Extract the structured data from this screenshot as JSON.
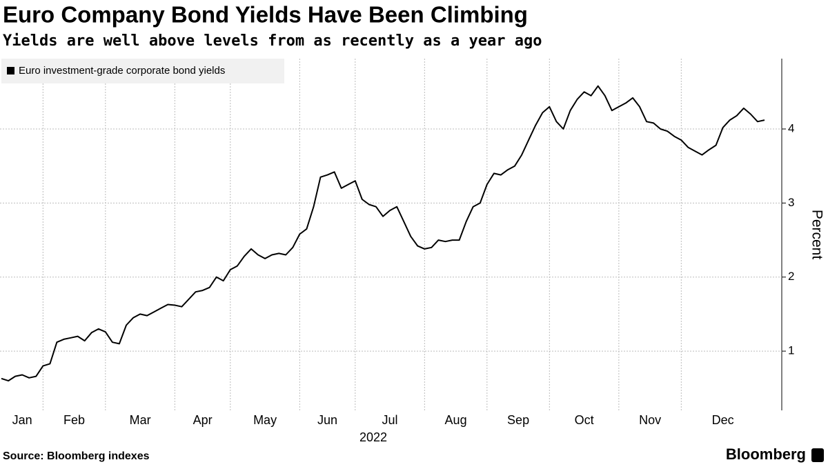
{
  "chart_data": {
    "type": "line",
    "title": "Euro Company Bond Yields Have Been Climbing",
    "subtitle": "Yields are well above levels from as recently as a year ago",
    "source": "Source: Bloomberg indexes",
    "brand": "Bloomberg",
    "x_label": "2022",
    "y_label": "Percent",
    "legend": "top-left",
    "grid": true,
    "ylim": [
      0.2,
      4.95
    ],
    "yticks": [
      1,
      2,
      3,
      4
    ],
    "categories": [
      "Jan",
      null,
      null,
      null,
      null,
      null,
      "Feb",
      null,
      null,
      null,
      null,
      null,
      null,
      null,
      null,
      "Mar",
      null,
      null,
      null,
      null,
      null,
      null,
      null,
      null,
      null,
      "Apr",
      null,
      null,
      null,
      null,
      null,
      null,
      null,
      "May",
      null,
      null,
      null,
      null,
      null,
      null,
      null,
      null,
      null,
      "Jun",
      null,
      null,
      null,
      null,
      null,
      null,
      null,
      "Jul",
      null,
      null,
      null,
      null,
      null,
      null,
      null,
      null,
      null,
      "Aug",
      null,
      null,
      null,
      null,
      null,
      null,
      null,
      null,
      "Sep",
      null,
      null,
      null,
      null,
      null,
      null,
      null,
      null,
      "Oct",
      null,
      null,
      null,
      null,
      null,
      null,
      null,
      null,
      null,
      "Nov",
      null,
      null,
      null,
      null,
      null,
      null,
      null,
      null,
      "Dec",
      null,
      null,
      null,
      null,
      null,
      null,
      null,
      null,
      null,
      null,
      null,
      null
    ],
    "series": [
      {
        "name": "Euro investment-grade corporate bond yields",
        "color": "#000000",
        "values": [
          0.63,
          0.6,
          0.66,
          0.68,
          0.64,
          0.66,
          0.8,
          0.83,
          1.12,
          1.16,
          1.18,
          1.2,
          1.14,
          1.25,
          1.3,
          1.26,
          1.12,
          1.1,
          1.35,
          1.45,
          1.5,
          1.48,
          1.53,
          1.58,
          1.63,
          1.62,
          1.6,
          1.7,
          1.8,
          1.82,
          1.86,
          2.0,
          1.95,
          2.1,
          2.15,
          2.28,
          2.38,
          2.3,
          2.25,
          2.3,
          2.32,
          2.3,
          2.4,
          2.58,
          2.65,
          2.95,
          3.35,
          3.38,
          3.42,
          3.2,
          3.25,
          3.3,
          3.05,
          2.98,
          2.95,
          2.82,
          2.9,
          2.95,
          2.75,
          2.55,
          2.42,
          2.38,
          2.4,
          2.5,
          2.48,
          2.5,
          2.5,
          2.75,
          2.95,
          3.0,
          3.25,
          3.4,
          3.38,
          3.45,
          3.5,
          3.65,
          3.85,
          4.05,
          4.22,
          4.3,
          4.1,
          4.0,
          4.25,
          4.4,
          4.5,
          4.45,
          4.58,
          4.45,
          4.25,
          4.3,
          4.35,
          4.42,
          4.3,
          4.1,
          4.08,
          4.0,
          3.97,
          3.9,
          3.85,
          3.75,
          3.7,
          3.65,
          3.72,
          3.78,
          4.02,
          4.12,
          4.18,
          4.28,
          4.2,
          4.1,
          4.12
        ]
      }
    ]
  }
}
